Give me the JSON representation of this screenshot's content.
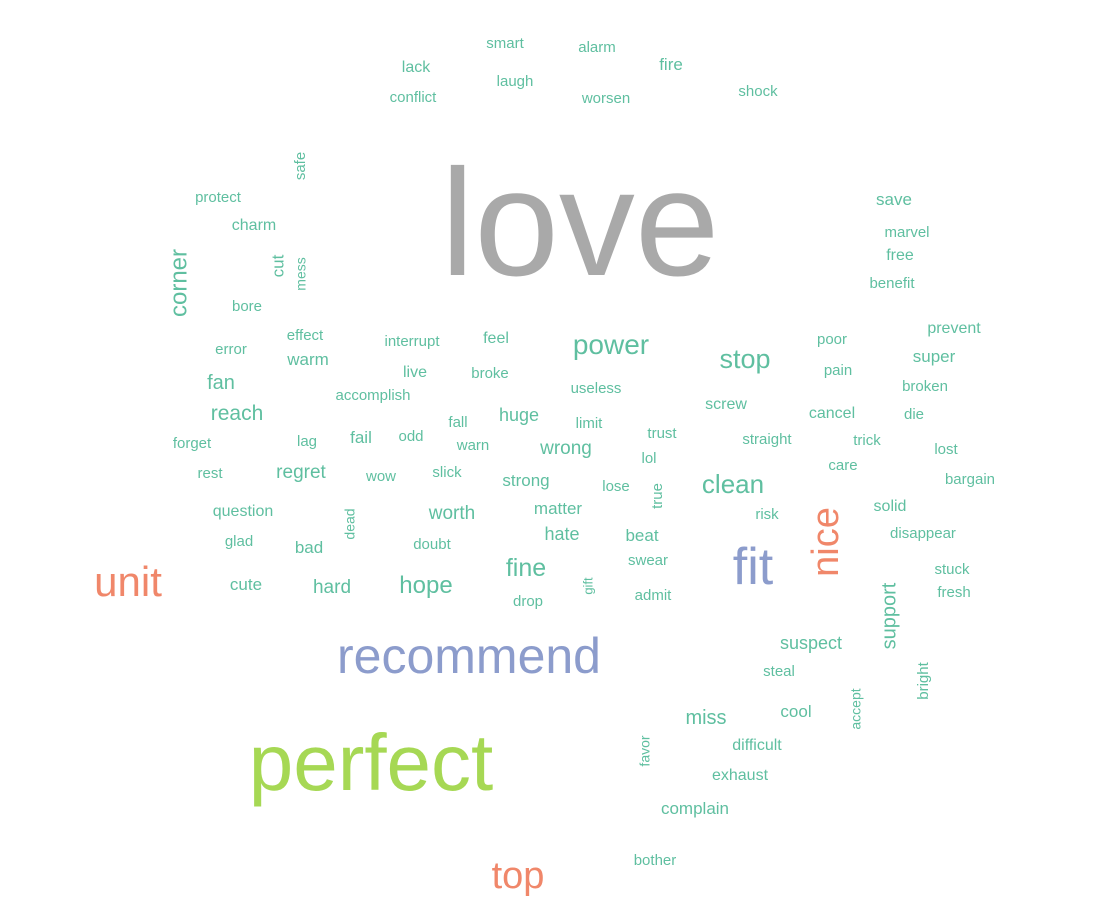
{
  "colors": {
    "grey": "#a9a9a9",
    "green": "#5fbfa0",
    "lime": "#a6d854",
    "orange": "#f0876a",
    "blue": "#8c9ccc"
  },
  "words": [
    {
      "text": "love",
      "color": "grey"
    },
    {
      "text": "perfect",
      "color": "lime"
    },
    {
      "text": "recommend",
      "color": "blue"
    },
    {
      "text": "fit",
      "color": "blue"
    },
    {
      "text": "unit",
      "color": "orange"
    },
    {
      "text": "nice",
      "color": "orange"
    },
    {
      "text": "top",
      "color": "orange"
    },
    {
      "text": "smart",
      "color": "green"
    },
    {
      "text": "alarm",
      "color": "green"
    },
    {
      "text": "lack",
      "color": "green"
    },
    {
      "text": "fire",
      "color": "green"
    },
    {
      "text": "laugh",
      "color": "green"
    },
    {
      "text": "conflict",
      "color": "green"
    },
    {
      "text": "worsen",
      "color": "green"
    },
    {
      "text": "shock",
      "color": "green"
    },
    {
      "text": "safe",
      "color": "green"
    },
    {
      "text": "protect",
      "color": "green"
    },
    {
      "text": "charm",
      "color": "green"
    },
    {
      "text": "cut",
      "color": "green"
    },
    {
      "text": "mess",
      "color": "green"
    },
    {
      "text": "corner",
      "color": "green"
    },
    {
      "text": "bore",
      "color": "green"
    },
    {
      "text": "save",
      "color": "green"
    },
    {
      "text": "marvel",
      "color": "green"
    },
    {
      "text": "free",
      "color": "green"
    },
    {
      "text": "benefit",
      "color": "green"
    },
    {
      "text": "effect",
      "color": "green"
    },
    {
      "text": "interrupt",
      "color": "green"
    },
    {
      "text": "feel",
      "color": "green"
    },
    {
      "text": "power",
      "color": "green"
    },
    {
      "text": "stop",
      "color": "green"
    },
    {
      "text": "poor",
      "color": "green"
    },
    {
      "text": "prevent",
      "color": "green"
    },
    {
      "text": "error",
      "color": "green"
    },
    {
      "text": "warm",
      "color": "green"
    },
    {
      "text": "live",
      "color": "green"
    },
    {
      "text": "broke",
      "color": "green"
    },
    {
      "text": "useless",
      "color": "green"
    },
    {
      "text": "pain",
      "color": "green"
    },
    {
      "text": "super",
      "color": "green"
    },
    {
      "text": "fan",
      "color": "green"
    },
    {
      "text": "accomplish",
      "color": "green"
    },
    {
      "text": "screw",
      "color": "green"
    },
    {
      "text": "broken",
      "color": "green"
    },
    {
      "text": "reach",
      "color": "green"
    },
    {
      "text": "huge",
      "color": "green"
    },
    {
      "text": "fall",
      "color": "green"
    },
    {
      "text": "limit",
      "color": "green"
    },
    {
      "text": "cancel",
      "color": "green"
    },
    {
      "text": "die",
      "color": "green"
    },
    {
      "text": "forget",
      "color": "green"
    },
    {
      "text": "lag",
      "color": "green"
    },
    {
      "text": "fail",
      "color": "green"
    },
    {
      "text": "odd",
      "color": "green"
    },
    {
      "text": "warn",
      "color": "green"
    },
    {
      "text": "wrong",
      "color": "green"
    },
    {
      "text": "trust",
      "color": "green"
    },
    {
      "text": "straight",
      "color": "green"
    },
    {
      "text": "trick",
      "color": "green"
    },
    {
      "text": "lost",
      "color": "green"
    },
    {
      "text": "lol",
      "color": "green"
    },
    {
      "text": "rest",
      "color": "green"
    },
    {
      "text": "regret",
      "color": "green"
    },
    {
      "text": "wow",
      "color": "green"
    },
    {
      "text": "slick",
      "color": "green"
    },
    {
      "text": "strong",
      "color": "green"
    },
    {
      "text": "lose",
      "color": "green"
    },
    {
      "text": "clean",
      "color": "green"
    },
    {
      "text": "care",
      "color": "green"
    },
    {
      "text": "bargain",
      "color": "green"
    },
    {
      "text": "true",
      "color": "green"
    },
    {
      "text": "question",
      "color": "green"
    },
    {
      "text": "worth",
      "color": "green"
    },
    {
      "text": "matter",
      "color": "green"
    },
    {
      "text": "risk",
      "color": "green"
    },
    {
      "text": "solid",
      "color": "green"
    },
    {
      "text": "dead",
      "color": "green"
    },
    {
      "text": "hate",
      "color": "green"
    },
    {
      "text": "beat",
      "color": "green"
    },
    {
      "text": "disappear",
      "color": "green"
    },
    {
      "text": "glad",
      "color": "green"
    },
    {
      "text": "bad",
      "color": "green"
    },
    {
      "text": "doubt",
      "color": "green"
    },
    {
      "text": "swear",
      "color": "green"
    },
    {
      "text": "fine",
      "color": "green"
    },
    {
      "text": "stuck",
      "color": "green"
    },
    {
      "text": "cute",
      "color": "green"
    },
    {
      "text": "hard",
      "color": "green"
    },
    {
      "text": "hope",
      "color": "green"
    },
    {
      "text": "gift",
      "color": "green"
    },
    {
      "text": "fresh",
      "color": "green"
    },
    {
      "text": "drop",
      "color": "green"
    },
    {
      "text": "admit",
      "color": "green"
    },
    {
      "text": "support",
      "color": "green"
    },
    {
      "text": "suspect",
      "color": "green"
    },
    {
      "text": "steal",
      "color": "green"
    },
    {
      "text": "bright",
      "color": "green"
    },
    {
      "text": "accept",
      "color": "green"
    },
    {
      "text": "cool",
      "color": "green"
    },
    {
      "text": "miss",
      "color": "green"
    },
    {
      "text": "difficult",
      "color": "green"
    },
    {
      "text": "favor",
      "color": "green"
    },
    {
      "text": "exhaust",
      "color": "green"
    },
    {
      "text": "complain",
      "color": "green"
    },
    {
      "text": "bother",
      "color": "green"
    }
  ]
}
